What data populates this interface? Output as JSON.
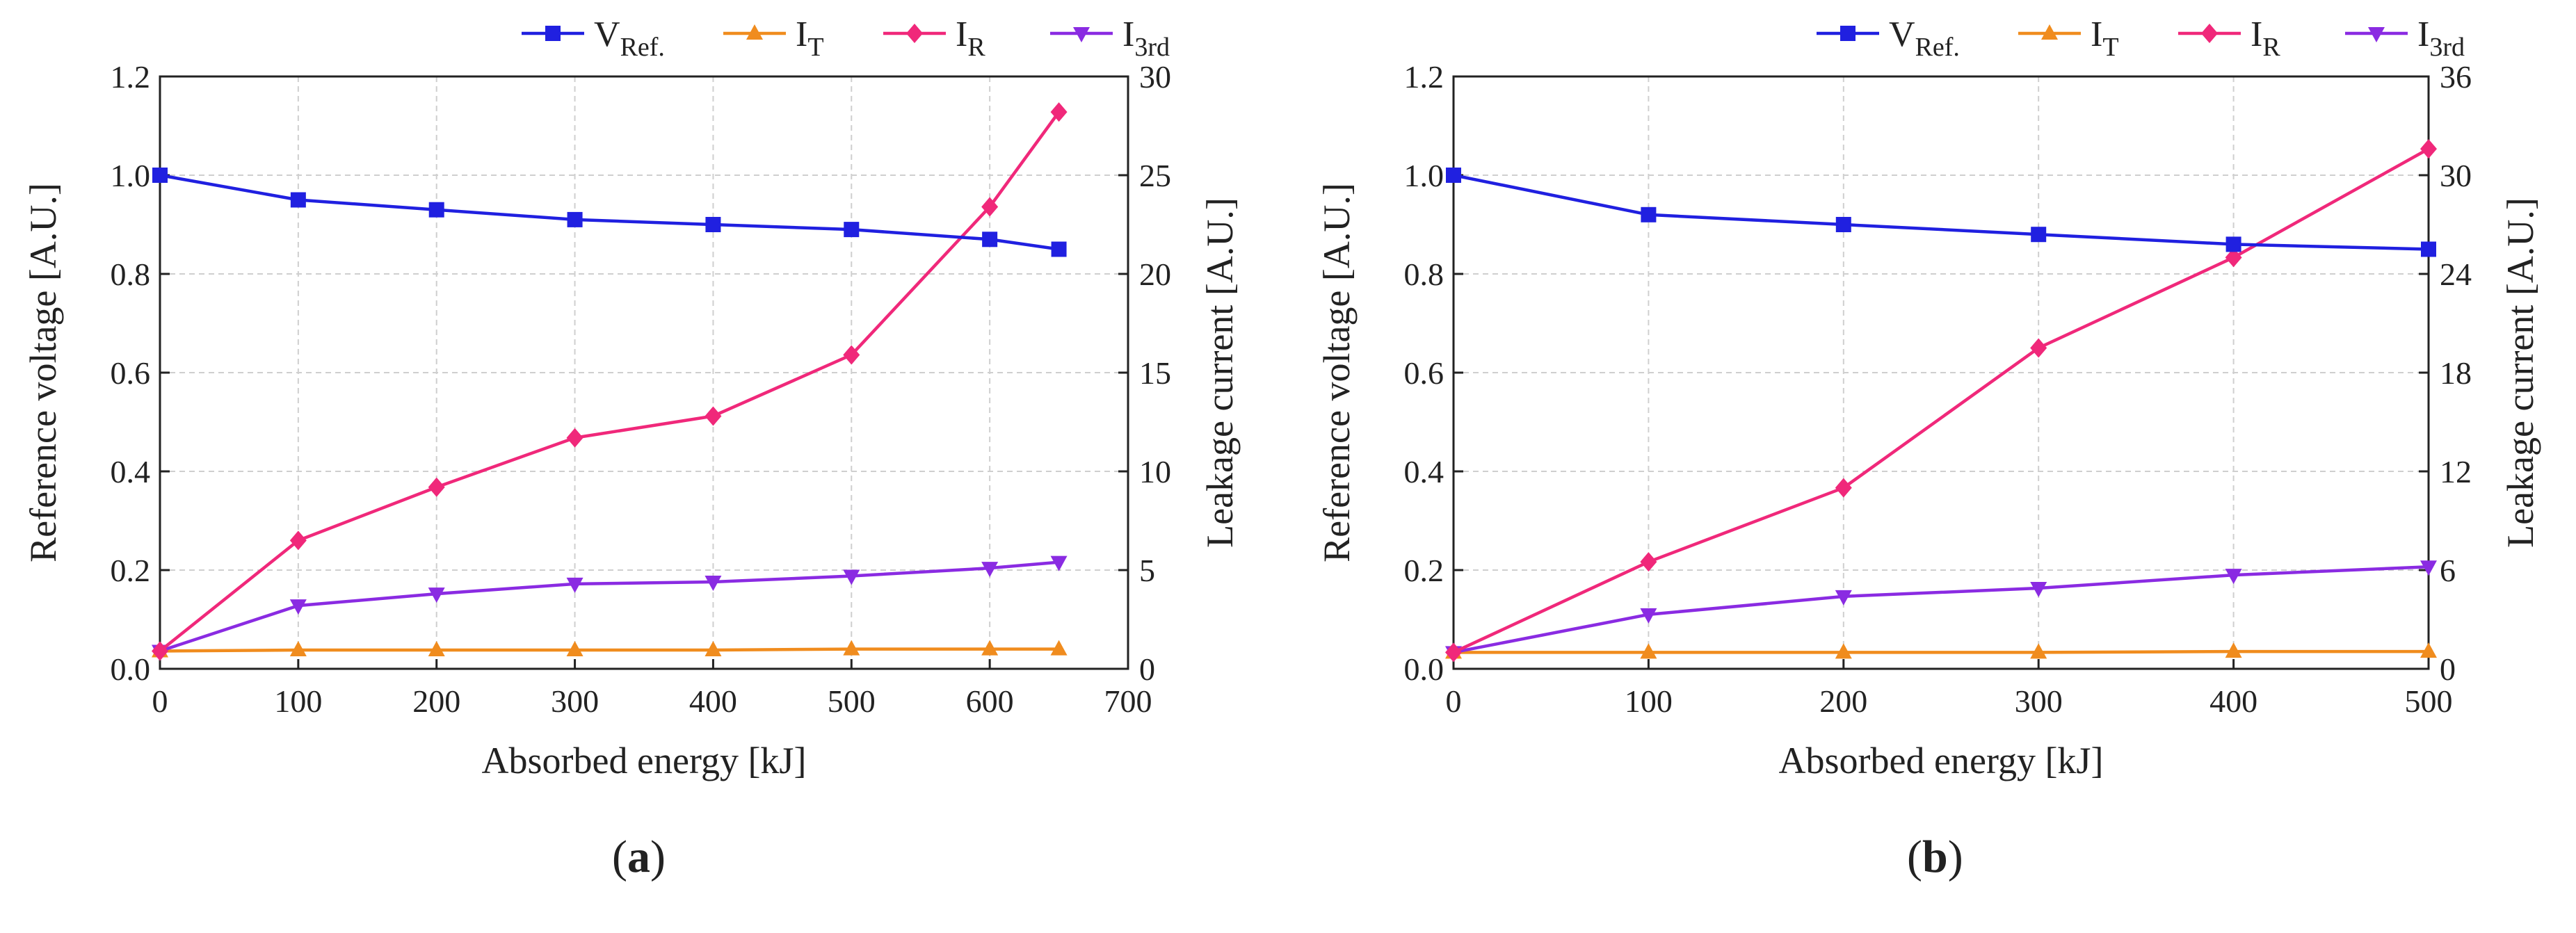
{
  "legend": [
    {
      "key": "vref",
      "main": "V",
      "sub": "Ref.",
      "color": "#2020E0",
      "marker": "square"
    },
    {
      "key": "it",
      "main": "I",
      "sub": "T",
      "color": "#F08C1E",
      "marker": "triangle-up"
    },
    {
      "key": "ir",
      "main": "I",
      "sub": "R",
      "color": "#F0287A",
      "marker": "diamond"
    },
    {
      "key": "i3rd",
      "main": "I",
      "sub": "3rd",
      "color": "#8A2BE2",
      "marker": "triangle-down"
    }
  ],
  "panels": [
    {
      "label": "a",
      "open": "(",
      "close": ")"
    },
    {
      "label": "b",
      "open": "(",
      "close": ")"
    }
  ],
  "chart_data": [
    {
      "type": "line",
      "panel": "a",
      "xlabel": "Absorbed energy [kJ]",
      "ylabel": "Reference voltage [A.U.]",
      "y2label": "Leakage current [A.U.]",
      "xlim": [
        0,
        700
      ],
      "ylim": [
        0,
        1.2
      ],
      "y2lim": [
        0,
        30
      ],
      "xticks": [
        0,
        100,
        200,
        300,
        400,
        500,
        600,
        700
      ],
      "yticks": [
        0.0,
        0.2,
        0.4,
        0.6,
        0.8,
        1.0,
        1.2
      ],
      "y2ticks": [
        0,
        5,
        10,
        15,
        20,
        25,
        30
      ],
      "grid": true,
      "legend_position": "top",
      "x": [
        0,
        100,
        200,
        300,
        400,
        500,
        600,
        650
      ],
      "series": [
        {
          "key": "vref",
          "axis": "left",
          "values": [
            1.0,
            0.95,
            0.93,
            0.91,
            0.9,
            0.89,
            0.87,
            0.85
          ]
        },
        {
          "key": "it",
          "axis": "right",
          "values": [
            0.9,
            0.95,
            0.95,
            0.95,
            0.95,
            1.0,
            1.0,
            1.0
          ]
        },
        {
          "key": "ir",
          "axis": "right",
          "values": [
            0.9,
            6.5,
            9.2,
            11.7,
            12.8,
            15.9,
            23.4,
            28.2
          ]
        },
        {
          "key": "i3rd",
          "axis": "right",
          "values": [
            0.9,
            3.2,
            3.8,
            4.3,
            4.4,
            4.7,
            5.1,
            5.4
          ]
        }
      ]
    },
    {
      "type": "line",
      "panel": "b",
      "xlabel": "Absorbed energy [kJ]",
      "ylabel": "Reference voltage [A.U.]",
      "y2label": "Leakage current [A.U.]",
      "xlim": [
        0,
        500
      ],
      "ylim": [
        0,
        1.2
      ],
      "y2lim": [
        0,
        36
      ],
      "xticks": [
        0,
        100,
        200,
        300,
        400,
        500
      ],
      "yticks": [
        0.0,
        0.2,
        0.4,
        0.6,
        0.8,
        1.0,
        1.2
      ],
      "y2ticks": [
        0,
        6,
        12,
        18,
        24,
        30,
        36
      ],
      "grid": true,
      "legend_position": "top",
      "x": [
        0,
        100,
        200,
        300,
        400,
        500
      ],
      "series": [
        {
          "key": "vref",
          "axis": "left",
          "values": [
            1.0,
            0.92,
            0.9,
            0.88,
            0.86,
            0.85
          ]
        },
        {
          "key": "it",
          "axis": "right",
          "values": [
            1.0,
            1.0,
            1.0,
            1.0,
            1.05,
            1.05
          ]
        },
        {
          "key": "ir",
          "axis": "right",
          "values": [
            1.0,
            6.5,
            11.0,
            19.5,
            25.0,
            31.6
          ]
        },
        {
          "key": "i3rd",
          "axis": "right",
          "values": [
            1.0,
            3.3,
            4.4,
            4.9,
            5.7,
            6.2
          ]
        }
      ]
    }
  ]
}
